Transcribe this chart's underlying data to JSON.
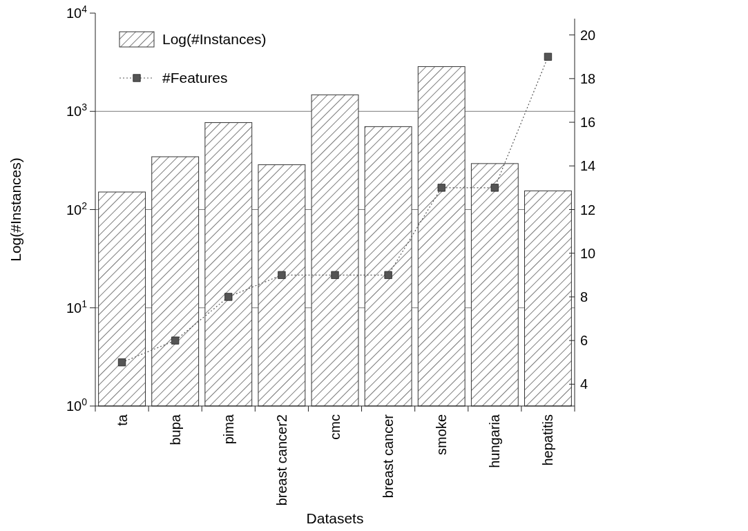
{
  "chart_data": {
    "type": "bar",
    "xlabel": "Datasets",
    "ylabel": "Log(#Instances)",
    "categories": [
      "ta",
      "bupa",
      "pima",
      "breast cancer2",
      "cmc",
      "breast cancer",
      "smoke",
      "hungaria",
      "hepatitis"
    ],
    "series": [
      {
        "name": "Log(#Instances)",
        "color": "#333333",
        "values": [
          151,
          345,
          768,
          286,
          1473,
          699,
          2855,
          294,
          155
        ]
      },
      {
        "name": "#Features",
        "type": "line",
        "axis": "y2",
        "color": "#555555",
        "marker": "square",
        "line_style": "dotted",
        "values": [
          5,
          6,
          8,
          9,
          9,
          9,
          13,
          13,
          19
        ]
      }
    ],
    "log": "y",
    "ylim": [
      1,
      10000
    ],
    "yticks": [
      {
        "value": 1,
        "label": "10$^{0}$"
      },
      {
        "value": 10,
        "label": "10$^{1}$"
      },
      {
        "value": 100,
        "label": "10$^{2}$"
      },
      {
        "value": 1000,
        "label": "10$^{3}$"
      },
      {
        "value": 10000,
        "label": "10$^{4}$"
      }
    ],
    "y2lim": [
      3,
      21
    ],
    "y2ticks": [
      4,
      6,
      8,
      10,
      12,
      14,
      16,
      18,
      20
    ],
    "grid": "y",
    "legend": "top left"
  }
}
